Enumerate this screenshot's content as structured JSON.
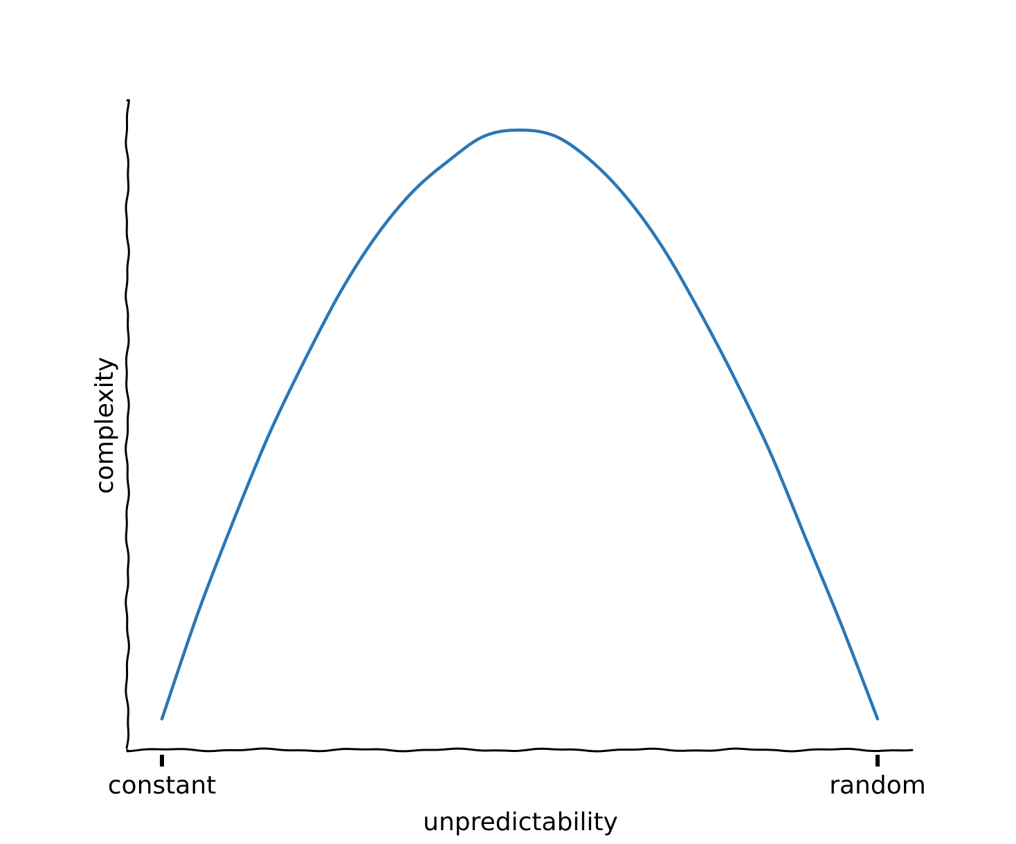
{
  "chart_data": {
    "type": "line",
    "xlabel": "unpredictability",
    "ylabel": "complexity",
    "xlim": [
      0,
      1
    ],
    "ylim": [
      0,
      1
    ],
    "x_ticks": [
      {
        "value": 0,
        "label": "constant"
      },
      {
        "value": 1,
        "label": "random"
      }
    ],
    "grid": false,
    "style": "hand-drawn",
    "series": [
      {
        "color": "#2a77b5",
        "x": [
          0.0,
          0.05,
          0.1,
          0.15,
          0.2,
          0.25,
          0.3,
          0.35,
          0.4,
          0.45,
          0.5,
          0.55,
          0.6,
          0.65,
          0.7,
          0.75,
          0.8,
          0.85,
          0.9,
          0.95,
          1.0
        ],
        "y": [
          0.05,
          0.22,
          0.37,
          0.51,
          0.63,
          0.74,
          0.83,
          0.9,
          0.95,
          0.99,
          1.0,
          0.99,
          0.95,
          0.89,
          0.81,
          0.71,
          0.6,
          0.48,
          0.34,
          0.2,
          0.05
        ]
      }
    ]
  }
}
